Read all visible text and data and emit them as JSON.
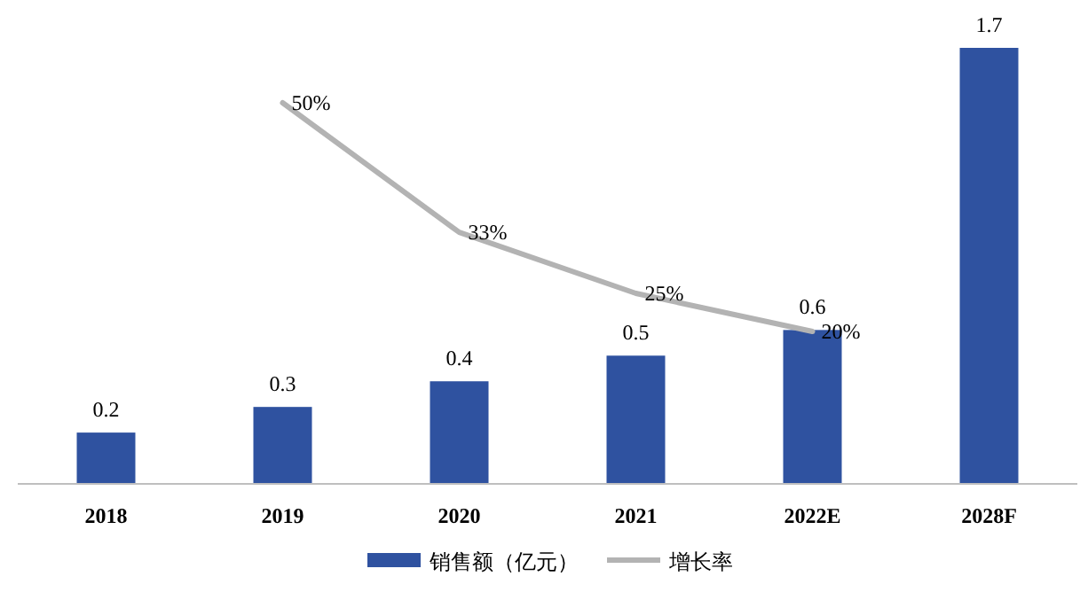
{
  "chart_data": {
    "type": "bar",
    "categories": [
      "2018",
      "2019",
      "2020",
      "2021",
      "2022E",
      "2028F"
    ],
    "series": [
      {
        "name": "销售额（亿元）",
        "color": "#2f52a0",
        "values": [
          0.2,
          0.3,
          0.4,
          0.5,
          0.6,
          1.7
        ]
      },
      {
        "name": "增长率",
        "type": "line",
        "axis": "y2",
        "color": "#b3b3b3",
        "values": [
          null,
          50,
          33,
          25,
          20,
          null
        ],
        "value_labels": [
          null,
          "50%",
          "33%",
          "25%",
          "20%",
          null
        ]
      }
    ],
    "data_labels": true,
    "legend": "bottom",
    "marker": "none",
    "line_style": "solid"
  }
}
